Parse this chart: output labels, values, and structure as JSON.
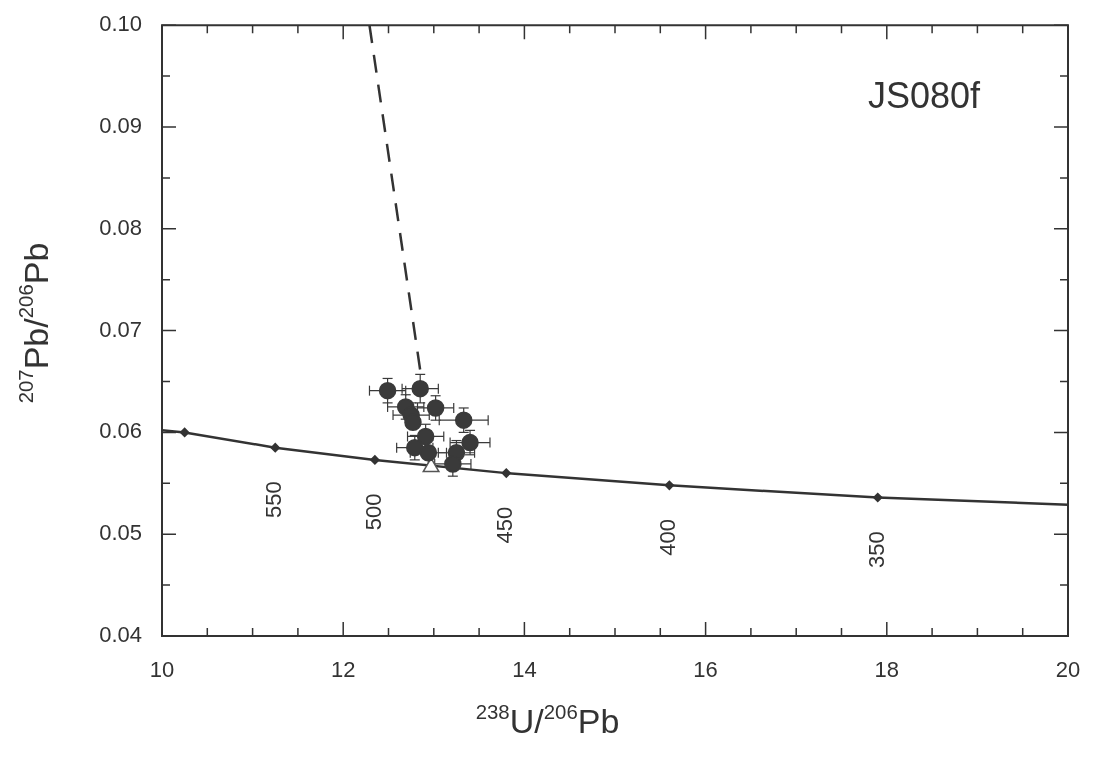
{
  "chart_data": {
    "type": "scatter",
    "title": "JS080f",
    "xlabel": "$^{238}$U/$^{206}$Pb",
    "ylabel": "$^{207}$Pb/$^{206}$Pb",
    "xlim": [
      10,
      20
    ],
    "xticks": [
      10,
      {
        "value": 10.5,
        "label": null
      },
      {
        "value": 11,
        "label": null
      },
      {
        "value": 11.5,
        "label": null
      },
      12,
      {
        "value": 12.5,
        "label": null
      },
      {
        "value": 13,
        "label": null
      },
      {
        "value": 13.5,
        "label": null
      },
      14,
      {
        "value": 14.5,
        "label": null
      },
      {
        "value": 15,
        "label": null
      },
      {
        "value": 15.5,
        "label": null
      },
      16,
      {
        "value": 16.5,
        "label": null
      },
      {
        "value": 17,
        "label": null
      },
      {
        "value": 17.5,
        "label": null
      },
      18,
      {
        "value": 18.5,
        "label": null
      },
      {
        "value": 19,
        "label": null
      },
      {
        "value": 19.5,
        "label": null
      },
      20
    ],
    "ylim": [
      0.04,
      0.1
    ],
    "yticks": [
      {
        "value": 0.04,
        "label": "0.04"
      },
      {
        "value": 0.045,
        "label": null
      },
      {
        "value": 0.05,
        "label": "0.05"
      },
      {
        "value": 0.055,
        "label": null
      },
      {
        "value": 0.06,
        "label": "0.06"
      },
      {
        "value": 0.065,
        "label": null
      },
      {
        "value": 0.07,
        "label": "0.07"
      },
      {
        "value": 0.075,
        "label": null
      },
      {
        "value": 0.08,
        "label": "0.08"
      },
      {
        "value": 0.085,
        "label": null
      },
      {
        "value": 0.09,
        "label": "0.09"
      },
      {
        "value": 0.095,
        "label": null
      },
      {
        "value": 0.1,
        "label": "0.10"
      }
    ],
    "grid": false,
    "legend": false,
    "series": [
      {
        "type": "line",
        "color": "#333333",
        "marker": "none",
        "line_style": "solid",
        "x": [
          10,
          10.25,
          11.25,
          12.35,
          13.8,
          15.6,
          17.9,
          20
        ],
        "values": [
          0.0602,
          0.06,
          0.0585,
          0.0573,
          0.056,
          0.0548,
          0.0536,
          0.0529
        ]
      },
      {
        "type": "scatter",
        "color": "#333333",
        "marker": "diamond",
        "x": [
          10.25,
          11.25,
          12.35,
          13.8,
          15.6,
          17.9
        ],
        "values": [
          0.06,
          0.0585,
          0.0573,
          0.056,
          0.0548,
          0.0536
        ]
      },
      {
        "type": "line",
        "color": "#333333",
        "marker": "none",
        "line_style": "dashed",
        "x": [
          12.29,
          12.86
        ],
        "values": [
          0.1,
          0.0655
        ]
      },
      {
        "type": "scatter",
        "color": "#3a3a3a",
        "marker": "circle",
        "x": [
          12.49,
          12.85,
          12.69,
          12.75,
          12.77,
          13.02,
          13.33,
          12.91,
          12.79,
          12.94,
          13.4,
          13.25,
          13.21
        ],
        "values": [
          0.0641,
          0.0643,
          0.0625,
          0.0617,
          0.061,
          0.0624,
          0.0612,
          0.0596,
          0.0585,
          0.058,
          0.059,
          0.058,
          0.0569
        ],
        "xerrors": [
          0.2,
          0.2,
          0.2,
          0.2,
          null,
          0.2,
          0.27,
          0.2,
          0.2,
          0.2,
          0.22,
          0.2,
          0.2
        ],
        "errors": [
          0.0012,
          0.0014,
          0.0012,
          0.0012,
          null,
          0.0012,
          0.0012,
          0.0012,
          0.0012,
          0.0012,
          0.0012,
          0.0012,
          0.0012
        ]
      },
      {
        "type": "scatter",
        "color": "#555555",
        "marker": "triangle",
        "x": [
          12.97
        ],
        "values": [
          0.0566
        ]
      }
    ],
    "annotations": [
      {
        "text": "550",
        "x": 11.25,
        "y": 0.0585
      },
      {
        "text": "500",
        "x": 12.35,
        "y": 0.0573
      },
      {
        "text": "450",
        "x": 13.8,
        "y": 0.056
      },
      {
        "text": "400",
        "x": 15.6,
        "y": 0.0548
      },
      {
        "text": "350",
        "x": 17.9,
        "y": 0.0536
      }
    ]
  }
}
